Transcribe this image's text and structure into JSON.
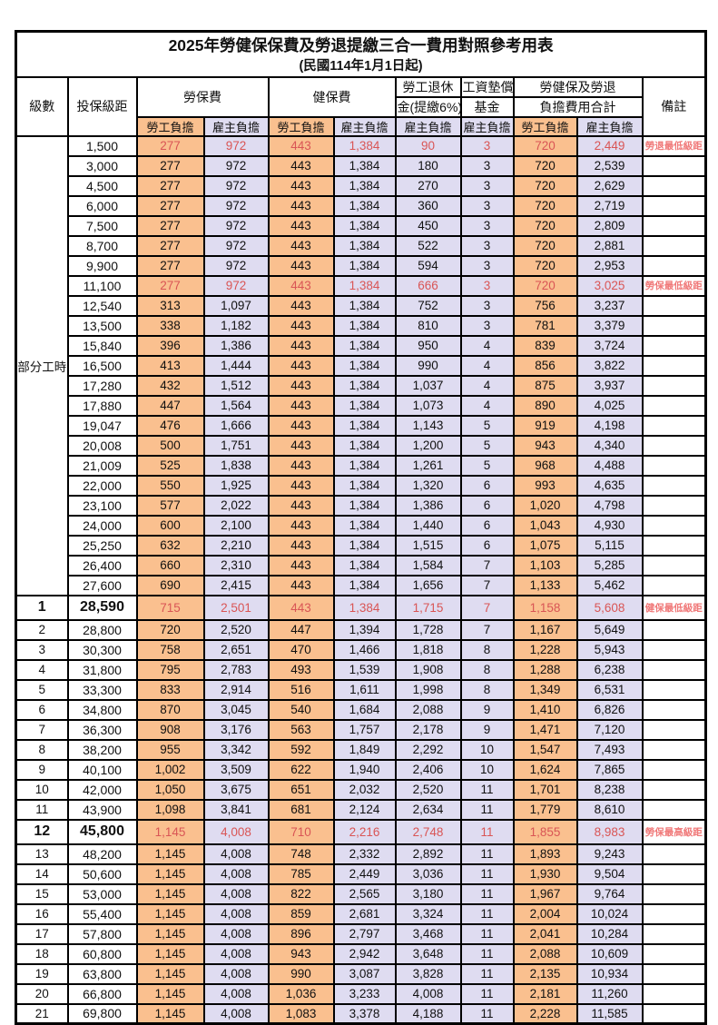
{
  "title": "2025年勞健保保費及勞退提繳三合一費用對照參考用表",
  "subtitle": "(民國114年1月1日起)",
  "colors": {
    "employee_bg": "#FAC08F",
    "employer_bg": "#DFDCF1",
    "red_text": "#D95555",
    "note_red": "#F07878"
  },
  "header": {
    "level": "級數",
    "bracket": "投保級距",
    "labor_insurance": "勞保費",
    "health_insurance": "健保費",
    "pension_top": "勞工退休",
    "pension_bottom": "金(提繳6%)",
    "wage_fund_top": "工資墊償",
    "wage_fund_bottom": "基金",
    "total_top": "勞健保及勞退",
    "total_bottom": "負擔費用合計",
    "note": "備註",
    "employee": "勞工負擔",
    "employer": "雇主負擔"
  },
  "part_time_label": "部分工時",
  "part_time_rows": [
    {
      "bracket": "1,500",
      "cells": [
        "277",
        "972",
        "443",
        "1,384",
        "90",
        "3",
        "720",
        "2,449"
      ],
      "note": "勞退最低級距",
      "flag": "red"
    },
    {
      "bracket": "3,000",
      "cells": [
        "277",
        "972",
        "443",
        "1,384",
        "180",
        "3",
        "720",
        "2,539"
      ],
      "note": "",
      "flag": ""
    },
    {
      "bracket": "4,500",
      "cells": [
        "277",
        "972",
        "443",
        "1,384",
        "270",
        "3",
        "720",
        "2,629"
      ],
      "note": "",
      "flag": ""
    },
    {
      "bracket": "6,000",
      "cells": [
        "277",
        "972",
        "443",
        "1,384",
        "360",
        "3",
        "720",
        "2,719"
      ],
      "note": "",
      "flag": ""
    },
    {
      "bracket": "7,500",
      "cells": [
        "277",
        "972",
        "443",
        "1,384",
        "450",
        "3",
        "720",
        "2,809"
      ],
      "note": "",
      "flag": ""
    },
    {
      "bracket": "8,700",
      "cells": [
        "277",
        "972",
        "443",
        "1,384",
        "522",
        "3",
        "720",
        "2,881"
      ],
      "note": "",
      "flag": ""
    },
    {
      "bracket": "9,900",
      "cells": [
        "277",
        "972",
        "443",
        "1,384",
        "594",
        "3",
        "720",
        "2,953"
      ],
      "note": "",
      "flag": ""
    },
    {
      "bracket": "11,100",
      "cells": [
        "277",
        "972",
        "443",
        "1,384",
        "666",
        "3",
        "720",
        "3,025"
      ],
      "note": "勞保最低級距",
      "flag": "red"
    },
    {
      "bracket": "12,540",
      "cells": [
        "313",
        "1,097",
        "443",
        "1,384",
        "752",
        "3",
        "756",
        "3,237"
      ],
      "note": "",
      "flag": ""
    },
    {
      "bracket": "13,500",
      "cells": [
        "338",
        "1,182",
        "443",
        "1,384",
        "810",
        "3",
        "781",
        "3,379"
      ],
      "note": "",
      "flag": ""
    },
    {
      "bracket": "15,840",
      "cells": [
        "396",
        "1,386",
        "443",
        "1,384",
        "950",
        "4",
        "839",
        "3,724"
      ],
      "note": "",
      "flag": ""
    },
    {
      "bracket": "16,500",
      "cells": [
        "413",
        "1,444",
        "443",
        "1,384",
        "990",
        "4",
        "856",
        "3,822"
      ],
      "note": "",
      "flag": ""
    },
    {
      "bracket": "17,280",
      "cells": [
        "432",
        "1,512",
        "443",
        "1,384",
        "1,037",
        "4",
        "875",
        "3,937"
      ],
      "note": "",
      "flag": ""
    },
    {
      "bracket": "17,880",
      "cells": [
        "447",
        "1,564",
        "443",
        "1,384",
        "1,073",
        "4",
        "890",
        "4,025"
      ],
      "note": "",
      "flag": ""
    },
    {
      "bracket": "19,047",
      "cells": [
        "476",
        "1,666",
        "443",
        "1,384",
        "1,143",
        "5",
        "919",
        "4,198"
      ],
      "note": "",
      "flag": ""
    },
    {
      "bracket": "20,008",
      "cells": [
        "500",
        "1,751",
        "443",
        "1,384",
        "1,200",
        "5",
        "943",
        "4,340"
      ],
      "note": "",
      "flag": ""
    },
    {
      "bracket": "21,009",
      "cells": [
        "525",
        "1,838",
        "443",
        "1,384",
        "1,261",
        "5",
        "968",
        "4,488"
      ],
      "note": "",
      "flag": ""
    },
    {
      "bracket": "22,000",
      "cells": [
        "550",
        "1,925",
        "443",
        "1,384",
        "1,320",
        "6",
        "993",
        "4,635"
      ],
      "note": "",
      "flag": ""
    },
    {
      "bracket": "23,100",
      "cells": [
        "577",
        "2,022",
        "443",
        "1,384",
        "1,386",
        "6",
        "1,020",
        "4,798"
      ],
      "note": "",
      "flag": ""
    },
    {
      "bracket": "24,000",
      "cells": [
        "600",
        "2,100",
        "443",
        "1,384",
        "1,440",
        "6",
        "1,043",
        "4,930"
      ],
      "note": "",
      "flag": ""
    },
    {
      "bracket": "25,250",
      "cells": [
        "632",
        "2,210",
        "443",
        "1,384",
        "1,515",
        "6",
        "1,075",
        "5,115"
      ],
      "note": "",
      "flag": ""
    },
    {
      "bracket": "26,400",
      "cells": [
        "660",
        "2,310",
        "443",
        "1,384",
        "1,584",
        "7",
        "1,103",
        "5,285"
      ],
      "note": "",
      "flag": ""
    },
    {
      "bracket": "27,600",
      "cells": [
        "690",
        "2,415",
        "443",
        "1,384",
        "1,656",
        "7",
        "1,133",
        "5,462"
      ],
      "note": "",
      "flag": ""
    }
  ],
  "level_rows": [
    {
      "level": "1",
      "bracket": "28,590",
      "cells": [
        "715",
        "2,501",
        "443",
        "1,384",
        "1,715",
        "7",
        "1,158",
        "5,608"
      ],
      "note": "健保最低級距",
      "flag": "red bold big"
    },
    {
      "level": "2",
      "bracket": "28,800",
      "cells": [
        "720",
        "2,520",
        "447",
        "1,394",
        "1,728",
        "7",
        "1,167",
        "5,649"
      ],
      "note": "",
      "flag": ""
    },
    {
      "level": "3",
      "bracket": "30,300",
      "cells": [
        "758",
        "2,651",
        "470",
        "1,466",
        "1,818",
        "8",
        "1,228",
        "5,943"
      ],
      "note": "",
      "flag": ""
    },
    {
      "level": "4",
      "bracket": "31,800",
      "cells": [
        "795",
        "2,783",
        "493",
        "1,539",
        "1,908",
        "8",
        "1,288",
        "6,238"
      ],
      "note": "",
      "flag": ""
    },
    {
      "level": "5",
      "bracket": "33,300",
      "cells": [
        "833",
        "2,914",
        "516",
        "1,611",
        "1,998",
        "8",
        "1,349",
        "6,531"
      ],
      "note": "",
      "flag": ""
    },
    {
      "level": "6",
      "bracket": "34,800",
      "cells": [
        "870",
        "3,045",
        "540",
        "1,684",
        "2,088",
        "9",
        "1,410",
        "6,826"
      ],
      "note": "",
      "flag": ""
    },
    {
      "level": "7",
      "bracket": "36,300",
      "cells": [
        "908",
        "3,176",
        "563",
        "1,757",
        "2,178",
        "9",
        "1,471",
        "7,120"
      ],
      "note": "",
      "flag": ""
    },
    {
      "level": "8",
      "bracket": "38,200",
      "cells": [
        "955",
        "3,342",
        "592",
        "1,849",
        "2,292",
        "10",
        "1,547",
        "7,493"
      ],
      "note": "",
      "flag": ""
    },
    {
      "level": "9",
      "bracket": "40,100",
      "cells": [
        "1,002",
        "3,509",
        "622",
        "1,940",
        "2,406",
        "10",
        "1,624",
        "7,865"
      ],
      "note": "",
      "flag": ""
    },
    {
      "level": "10",
      "bracket": "42,000",
      "cells": [
        "1,050",
        "3,675",
        "651",
        "2,032",
        "2,520",
        "11",
        "1,701",
        "8,238"
      ],
      "note": "",
      "flag": ""
    },
    {
      "level": "11",
      "bracket": "43,900",
      "cells": [
        "1,098",
        "3,841",
        "681",
        "2,124",
        "2,634",
        "11",
        "1,779",
        "8,610"
      ],
      "note": "",
      "flag": ""
    },
    {
      "level": "12",
      "bracket": "45,800",
      "cells": [
        "1,145",
        "4,008",
        "710",
        "2,216",
        "2,748",
        "11",
        "1,855",
        "8,983"
      ],
      "note": "勞保最高級距",
      "flag": "red bold big"
    },
    {
      "level": "13",
      "bracket": "48,200",
      "cells": [
        "1,145",
        "4,008",
        "748",
        "2,332",
        "2,892",
        "11",
        "1,893",
        "9,243"
      ],
      "note": "",
      "flag": ""
    },
    {
      "level": "14",
      "bracket": "50,600",
      "cells": [
        "1,145",
        "4,008",
        "785",
        "2,449",
        "3,036",
        "11",
        "1,930",
        "9,504"
      ],
      "note": "",
      "flag": ""
    },
    {
      "level": "15",
      "bracket": "53,000",
      "cells": [
        "1,145",
        "4,008",
        "822",
        "2,565",
        "3,180",
        "11",
        "1,967",
        "9,764"
      ],
      "note": "",
      "flag": ""
    },
    {
      "level": "16",
      "bracket": "55,400",
      "cells": [
        "1,145",
        "4,008",
        "859",
        "2,681",
        "3,324",
        "11",
        "2,004",
        "10,024"
      ],
      "note": "",
      "flag": ""
    },
    {
      "level": "17",
      "bracket": "57,800",
      "cells": [
        "1,145",
        "4,008",
        "896",
        "2,797",
        "3,468",
        "11",
        "2,041",
        "10,284"
      ],
      "note": "",
      "flag": ""
    },
    {
      "level": "18",
      "bracket": "60,800",
      "cells": [
        "1,145",
        "4,008",
        "943",
        "2,942",
        "3,648",
        "11",
        "2,088",
        "10,609"
      ],
      "note": "",
      "flag": ""
    },
    {
      "level": "19",
      "bracket": "63,800",
      "cells": [
        "1,145",
        "4,008",
        "990",
        "3,087",
        "3,828",
        "11",
        "2,135",
        "10,934"
      ],
      "note": "",
      "flag": ""
    },
    {
      "level": "20",
      "bracket": "66,800",
      "cells": [
        "1,145",
        "4,008",
        "1,036",
        "3,233",
        "4,008",
        "11",
        "2,181",
        "11,260"
      ],
      "note": "",
      "flag": ""
    },
    {
      "level": "21",
      "bracket": "69,800",
      "cells": [
        "1,145",
        "4,008",
        "1,083",
        "3,378",
        "4,188",
        "11",
        "2,228",
        "11,585"
      ],
      "note": "",
      "flag": ""
    }
  ]
}
